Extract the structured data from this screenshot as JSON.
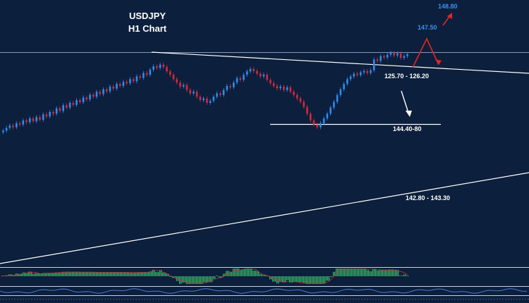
{
  "chart_data": {
    "type": "candlestick",
    "title": "USDJPY",
    "subtitle": "H1 Chart",
    "annotations": {
      "target_1": "148.80",
      "target_2": "147.50",
      "resistance": "125.70 - 126.20",
      "support_1": "144.40-80",
      "support_2": "142.80 - 143.30"
    },
    "closes": [
      144.2,
      144.28,
      144.35,
      144.3,
      144.42,
      144.38,
      144.5,
      144.45,
      144.56,
      144.48,
      144.6,
      144.52,
      144.68,
      144.62,
      144.75,
      144.7,
      144.86,
      144.78,
      144.95,
      144.88,
      145.02,
      144.96,
      145.1,
      145.04,
      145.18,
      145.12,
      145.26,
      145.2,
      145.35,
      145.28,
      145.42,
      145.36,
      145.5,
      145.44,
      145.58,
      145.52,
      145.64,
      145.6,
      145.72,
      145.66,
      145.8,
      145.76,
      145.9,
      145.85,
      146.0,
      146.1,
      146.05,
      146.15,
      146.08,
      145.95,
      145.85,
      145.72,
      145.62,
      145.5,
      145.55,
      145.4,
      145.3,
      145.35,
      145.2,
      145.1,
      145.15,
      145.02,
      145.08,
      145.2,
      145.3,
      145.25,
      145.4,
      145.52,
      145.48,
      145.62,
      145.75,
      145.7,
      145.85,
      145.95,
      146.02,
      145.96,
      145.88,
      145.8,
      145.85,
      145.7,
      145.6,
      145.52,
      145.45,
      145.5,
      145.4,
      145.48,
      145.35,
      145.25,
      145.15,
      145.05,
      144.9,
      144.7,
      144.5,
      144.38,
      144.3,
      144.42,
      144.56,
      144.7,
      144.88,
      145.05,
      145.25,
      145.42,
      145.58,
      145.72,
      145.8,
      145.88,
      145.84,
      145.92,
      145.96,
      145.9,
      145.98,
      146.3,
      146.26,
      146.4,
      146.36,
      146.44,
      146.5,
      146.42,
      146.48,
      146.35,
      146.4,
      146.46
    ],
    "indicators": [
      "MACD histogram",
      "Oscillator"
    ]
  }
}
